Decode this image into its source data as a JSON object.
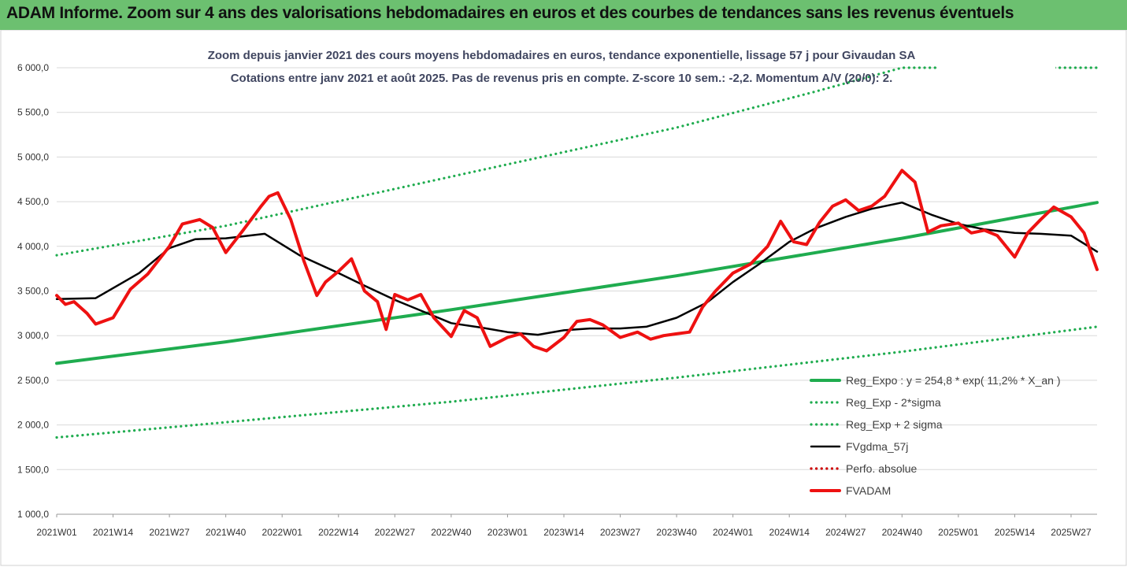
{
  "banner": {
    "title": "ADAM Informe. Zoom sur 4 ans des valorisations hebdomadaires en euros et des courbes de tendances sans les revenus éventuels"
  },
  "colors": {
    "banner_bg": "#6cc070",
    "trend": "#1fac4f",
    "price": "#ee1111",
    "smooth": "#000000",
    "title_text": "#404660"
  },
  "chart_data": {
    "type": "line",
    "title": "Zoom depuis janvier 2021 des cours moyens hebdomadaires en euros, tendance exponentielle, lissage 57 j pour Givaudan SA",
    "subtitle": "Cotations entre janv 2021 et août 2025.  Pas de revenus pris en compte. Z-score 10 sem.: -2,2. Momentum A/V (20/0): 2.",
    "xlabel": "",
    "ylabel": "",
    "ylim": [
      1000,
      6000
    ],
    "y_ticks": [
      "6 000,0",
      "5 500,0",
      "5 000,0",
      "4 500,0",
      "4 000,0",
      "3 500,0",
      "3 000,0",
      "2 500,0",
      "2 000,0",
      "1 500,0",
      "1 000,0"
    ],
    "x_ticks": [
      "2021W01",
      "2021W14",
      "2021W27",
      "2021W40",
      "2022W01",
      "2022W14",
      "2022W27",
      "2022W40",
      "2023W01",
      "2023W14",
      "2023W27",
      "2023W40",
      "2024W01",
      "2024W14",
      "2024W27",
      "2024W40",
      "2025W01",
      "2025W14",
      "2025W27"
    ],
    "grid": "horizontal",
    "legend_position": "bottom-right",
    "series": [
      {
        "name": "Reg_Expo : y = 254,8 * exp( 11,2% *  X_an )",
        "style": "solid-thick",
        "color": "#1fac4f",
        "x": [
          "2021W01",
          "2021W40",
          "2022W40",
          "2023W40",
          "2024W40",
          "2025W33"
        ],
        "values": [
          2690,
          2930,
          3290,
          3670,
          4090,
          4490
        ]
      },
      {
        "name": "Reg_Exp - 2*sigma",
        "style": "dotted",
        "color": "#1fac4f",
        "x": [
          "2021W01",
          "2021W40",
          "2022W40",
          "2023W40",
          "2024W40",
          "2025W33"
        ],
        "values": [
          1860,
          2030,
          2260,
          2530,
          2820,
          3100
        ]
      },
      {
        "name": "Reg_Exp + 2 sigma",
        "style": "dotted",
        "color": "#1fac4f",
        "x": [
          "2021W01",
          "2021W40",
          "2022W40",
          "2023W40",
          "2024W19",
          "2024W40",
          "2025W33"
        ],
        "values": [
          3900,
          4230,
          4780,
          5330,
          5720,
          6000,
          6000
        ]
      },
      {
        "name": "FVgdma_57j",
        "style": "solid",
        "color": "#000000",
        "x": [
          "2021W01",
          "2021W10",
          "2021W20",
          "2021W27",
          "2021W33",
          "2021W40",
          "2021W49",
          "2022W05",
          "2022W14",
          "2022W20",
          "2022W27",
          "2022W33",
          "2022W40",
          "2022W47",
          "2023W01",
          "2023W08",
          "2023W14",
          "2023W20",
          "2023W27",
          "2023W33",
          "2023W40",
          "2023W47",
          "2024W01",
          "2024W07",
          "2024W14",
          "2024W20",
          "2024W27",
          "2024W33",
          "2024W40",
          "2024W47",
          "2025W01",
          "2025W07",
          "2025W14",
          "2025W20",
          "2025W27",
          "2025W33"
        ],
        "values": [
          3410,
          3420,
          3700,
          3980,
          4080,
          4090,
          4140,
          3900,
          3700,
          3560,
          3400,
          3280,
          3140,
          3090,
          3040,
          3010,
          3060,
          3080,
          3080,
          3100,
          3200,
          3370,
          3600,
          3800,
          4050,
          4200,
          4330,
          4420,
          4490,
          4350,
          4250,
          4190,
          4150,
          4140,
          4120,
          3940
        ]
      },
      {
        "name": "Perfo. absolue",
        "style": "dotted",
        "color": "#cc0000",
        "x": [],
        "values": []
      },
      {
        "name": "FVADAM",
        "style": "solid-thick",
        "color": "#ee1111",
        "x": [
          "2021W01",
          "2021W03",
          "2021W05",
          "2021W08",
          "2021W10",
          "2021W14",
          "2021W18",
          "2021W22",
          "2021W27",
          "2021W30",
          "2021W34",
          "2021W37",
          "2021W40",
          "2021W44",
          "2021W48",
          "2021W50",
          "2021W52",
          "2022W03",
          "2022W06",
          "2022W09",
          "2022W11",
          "2022W14",
          "2022W17",
          "2022W20",
          "2022W23",
          "2022W25",
          "2022W27",
          "2022W30",
          "2022W33",
          "2022W36",
          "2022W40",
          "2022W43",
          "2022W46",
          "2022W49",
          "2023W01",
          "2023W04",
          "2023W07",
          "2023W10",
          "2023W14",
          "2023W17",
          "2023W20",
          "2023W23",
          "2023W27",
          "2023W31",
          "2023W34",
          "2023W37",
          "2023W40",
          "2023W43",
          "2023W46",
          "2023W49",
          "2024W01",
          "2024W05",
          "2024W09",
          "2024W12",
          "2024W15",
          "2024W18",
          "2024W21",
          "2024W24",
          "2024W27",
          "2024W30",
          "2024W33",
          "2024W36",
          "2024W40",
          "2024W43",
          "2024W46",
          "2024W49",
          "2025W01",
          "2025W04",
          "2025W07",
          "2025W10",
          "2025W14",
          "2025W17",
          "2025W20",
          "2025W23",
          "2025W27",
          "2025W30",
          "2025W33"
        ],
        "values": [
          3450,
          3350,
          3380,
          3250,
          3130,
          3200,
          3520,
          3690,
          4000,
          4250,
          4300,
          4210,
          3930,
          4180,
          4440,
          4560,
          4600,
          4300,
          3840,
          3450,
          3600,
          3720,
          3860,
          3500,
          3380,
          3070,
          3460,
          3400,
          3460,
          3200,
          2990,
          3280,
          3200,
          2880,
          2980,
          3020,
          2880,
          2830,
          2980,
          3160,
          3180,
          3120,
          2980,
          3040,
          2960,
          3000,
          3020,
          3040,
          3320,
          3500,
          3700,
          3800,
          4000,
          4280,
          4050,
          4020,
          4270,
          4450,
          4520,
          4400,
          4450,
          4560,
          4850,
          4720,
          4160,
          4230,
          4260,
          4150,
          4180,
          4120,
          3880,
          4150,
          4300,
          4440,
          4330,
          4150,
          3740
        ]
      }
    ]
  }
}
